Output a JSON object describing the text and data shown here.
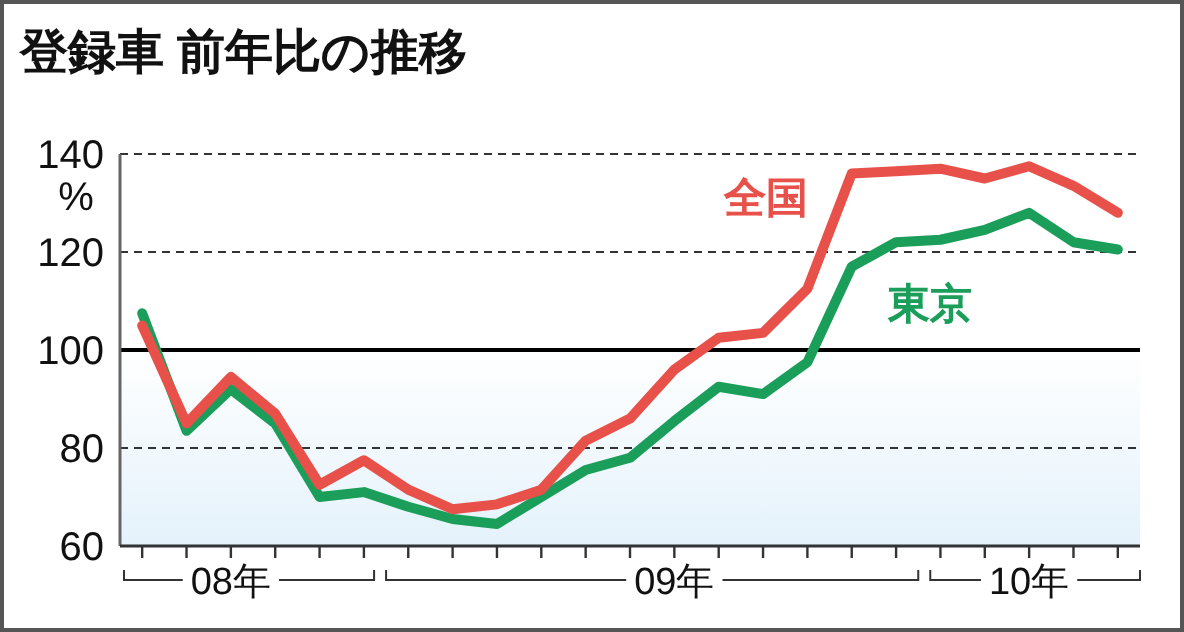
{
  "chart_data": {
    "type": "line",
    "title": "登録車  前年比の推移",
    "ylabel": "%",
    "categories": [
      null,
      null,
      "08年",
      null,
      null,
      null,
      null,
      null,
      null,
      null,
      null,
      null,
      "09年",
      null,
      null,
      null,
      null,
      null,
      null,
      null,
      "10年",
      null,
      null
    ],
    "ylim": [
      60,
      140
    ],
    "yticks": [
      60,
      80,
      100,
      120,
      140
    ],
    "grid": "y",
    "ref_lines": [
      {
        "axis": "y",
        "value": 100,
        "label": null,
        "color": "#000000",
        "line_style": "solid"
      }
    ],
    "bands": [
      {
        "axis": "y",
        "from": 60,
        "to": 100,
        "label": null,
        "color": "#e4f2fb"
      }
    ],
    "series": [
      {
        "name": "全国",
        "color": "#e8504a",
        "values": [
          105,
          85,
          94.5,
          87,
          72.5,
          77.5,
          71.5,
          67.5,
          68.5,
          71.5,
          81.5,
          86,
          96,
          102.5,
          103.5,
          112.5,
          136,
          136.5,
          137,
          135,
          137.5,
          133.5,
          128
        ]
      },
      {
        "name": "東京",
        "color": "#1a9e5a",
        "values": [
          107.5,
          83.5,
          92,
          85,
          70,
          71,
          68,
          65.5,
          64.5,
          70,
          75.5,
          78,
          85.5,
          92.5,
          91,
          97.5,
          117,
          122,
          122.5,
          124.5,
          128,
          122,
          120.5
        ]
      }
    ],
    "legend": false,
    "marker": "none",
    "line_style": "solid"
  }
}
